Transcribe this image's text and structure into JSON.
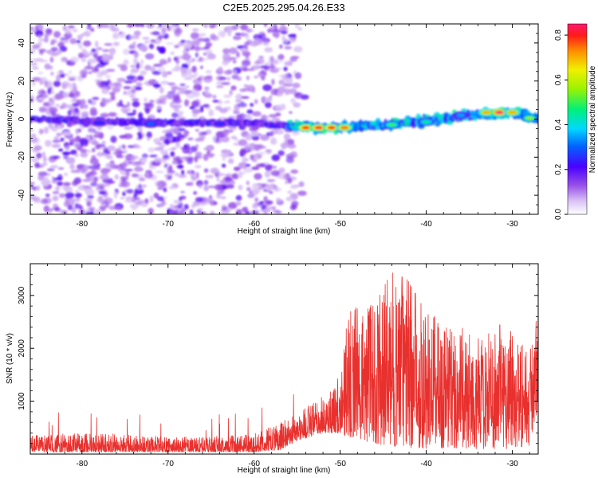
{
  "title": "C2E5.2025.295.04.26.E33",
  "chart_data": [
    {
      "type": "heatmap",
      "xlabel": "Height of straight line (km)",
      "ylabel": "Frequency (Hz)",
      "xlim": [
        -86,
        -27
      ],
      "ylim": [
        -50,
        50
      ],
      "xticks": [
        -80,
        -70,
        -60,
        -50,
        -40,
        -30
      ],
      "yticks": [
        -40,
        -20,
        0,
        20,
        40
      ],
      "colorbar": {
        "label": "Normalized spectral amplitude",
        "range": [
          0,
          0.85
        ],
        "ticks": [
          "0.0",
          "0.2",
          "0.4",
          "0.6",
          "0.8"
        ],
        "tick_values": [
          0,
          0.2,
          0.4,
          0.6,
          0.8
        ]
      },
      "noise_region_x": [
        -86,
        -55
      ],
      "ridge": [
        {
          "x": -86,
          "y": 0
        },
        {
          "x": -70,
          "y": -2
        },
        {
          "x": -60,
          "y": -2
        },
        {
          "x": -55,
          "y": -4
        },
        {
          "x": -52,
          "y": -4.5
        },
        {
          "x": -45,
          "y": -3
        },
        {
          "x": -40,
          "y": -1
        },
        {
          "x": -35,
          "y": 2
        },
        {
          "x": -30,
          "y": 3.5
        },
        {
          "x": -27,
          "y": 0
        }
      ],
      "hotspots": [
        {
          "x": -54,
          "y": -4.5,
          "amp": 0.8
        },
        {
          "x": -52.5,
          "y": -4.5,
          "amp": 0.82
        },
        {
          "x": -51,
          "y": -4.5,
          "amp": 0.8
        },
        {
          "x": -49.5,
          "y": -4.5,
          "amp": 0.75
        },
        {
          "x": -44,
          "y": -3,
          "amp": 0.5
        },
        {
          "x": -40,
          "y": -1.5,
          "amp": 0.45
        },
        {
          "x": -36,
          "y": 2,
          "amp": 0.35
        },
        {
          "x": -33,
          "y": 3.5,
          "amp": 0.7
        },
        {
          "x": -31.5,
          "y": 3.5,
          "amp": 0.85
        },
        {
          "x": -30,
          "y": 3.5,
          "amp": 0.7
        },
        {
          "x": -28,
          "y": 0.5,
          "amp": 0.55
        },
        {
          "x": -72,
          "y": -2.5,
          "amp": 0.3
        },
        {
          "x": -78,
          "y": -2,
          "amp": 0.25
        },
        {
          "x": -64,
          "y": -2.5,
          "amp": 0.25
        }
      ]
    },
    {
      "type": "line",
      "xlabel": "Height of straight line (km)",
      "ylabel": "SNR (10 * v/v)",
      "xlim": [
        -86,
        -27
      ],
      "ylim": [
        0,
        3600
      ],
      "xticks": [
        -80,
        -70,
        -60,
        -50,
        -40,
        -30
      ],
      "yticks": [
        1000,
        2000,
        3000
      ],
      "series": [
        {
          "name": "SNR",
          "color": "#e8312e",
          "envelope": [
            {
              "x": -86,
              "hi": 350,
              "lo": 40
            },
            {
              "x": -80,
              "hi": 400,
              "lo": 40
            },
            {
              "x": -75,
              "hi": 380,
              "lo": 40
            },
            {
              "x": -70,
              "hi": 320,
              "lo": 40
            },
            {
              "x": -65,
              "hi": 330,
              "lo": 40
            },
            {
              "x": -60,
              "hi": 380,
              "lo": 40
            },
            {
              "x": -57,
              "hi": 600,
              "lo": 80
            },
            {
              "x": -55,
              "hi": 800,
              "lo": 250
            },
            {
              "x": -52,
              "hi": 1100,
              "lo": 400
            },
            {
              "x": -50,
              "hi": 1500,
              "lo": 400
            },
            {
              "x": -49,
              "hi": 2800,
              "lo": 300
            },
            {
              "x": -46,
              "hi": 2900,
              "lo": 200
            },
            {
              "x": -44,
              "hi": 3450,
              "lo": 150
            },
            {
              "x": -42,
              "hi": 3450,
              "lo": 100
            },
            {
              "x": -40,
              "hi": 2900,
              "lo": 100
            },
            {
              "x": -37,
              "hi": 2500,
              "lo": 100
            },
            {
              "x": -34,
              "hi": 2200,
              "lo": 100
            },
            {
              "x": -30,
              "hi": 2600,
              "lo": 100
            },
            {
              "x": -28,
              "hi": 1900,
              "lo": 150
            },
            {
              "x": -27,
              "hi": 2800,
              "lo": 900
            }
          ]
        }
      ]
    }
  ]
}
